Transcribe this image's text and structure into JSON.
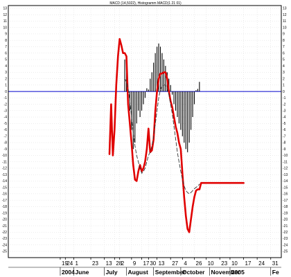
{
  "chart_data": {
    "type": "line",
    "title": "MACD (14,5022), Histogramm MACD(1 21 01)",
    "xlabel": "",
    "ylabel": "",
    "ylim": [
      -25,
      13
    ],
    "y_ticks": [
      13,
      12,
      11,
      10,
      9,
      8,
      7,
      6,
      5,
      4,
      3,
      2,
      1,
      0,
      -1,
      -2,
      -3,
      -4,
      -5,
      -6,
      -7,
      -8,
      -9,
      -10,
      -11,
      -12,
      -13,
      -14,
      -15,
      -16,
      -17,
      -18,
      -19,
      -20,
      -21,
      -22,
      -23,
      -24,
      -25
    ],
    "grid": true,
    "legend": "none",
    "x_ticks": [
      {
        "label": "19",
        "i": -29
      },
      {
        "label": "24",
        "i": -26
      },
      {
        "label": "1",
        "i": -21
      },
      {
        "label": "23",
        "i": -11
      },
      {
        "label": "13",
        "i": -3
      },
      {
        "label": "28",
        "i": 3
      },
      {
        "label": "2",
        "i": 6
      },
      {
        "label": "9",
        "i": 13
      },
      {
        "label": "17",
        "i": 19
      },
      {
        "label": "30",
        "i": 23
      },
      {
        "label": "13",
        "i": 28
      },
      {
        "label": "27",
        "i": 36
      },
      {
        "label": "4",
        "i": 43
      },
      {
        "label": "26",
        "i": 50
      },
      {
        "label": "10",
        "i": 57
      },
      {
        "label": "23",
        "i": 65
      },
      {
        "label": "10",
        "i": 71
      },
      {
        "label": "17",
        "i": 79
      },
      {
        "label": "24",
        "i": 87
      },
      {
        "label": "31",
        "i": 95
      }
    ],
    "x_months": [
      {
        "label": "2004",
        "i": -29
      },
      {
        "label": "June",
        "i": -21
      },
      {
        "label": "July",
        "i": -3
      },
      {
        "label": "August",
        "i": 10
      },
      {
        "label": "September",
        "i": 26
      },
      {
        "label": "October",
        "i": 42
      },
      {
        "label": "November",
        "i": 59
      },
      {
        "label": "2005",
        "i": 71
      },
      {
        "label": "Fe",
        "i": 95
      }
    ],
    "series": [
      {
        "color": "#e00000",
        "style": "solid",
        "x": [
          0,
          1,
          2,
          3,
          4,
          5,
          6,
          7,
          8,
          9,
          10,
          11,
          12,
          13,
          14,
          15,
          16,
          17,
          18,
          19,
          20,
          21,
          22,
          23,
          24,
          25,
          26,
          27,
          28,
          29,
          30,
          31,
          32,
          33,
          34,
          35,
          36,
          37,
          38,
          39,
          40,
          41,
          42,
          43,
          44,
          45,
          46,
          47,
          48,
          49,
          50,
          51,
          52,
          53,
          54,
          55,
          56,
          57,
          58,
          59,
          60,
          61,
          62,
          63,
          64,
          65,
          66,
          67,
          68,
          69,
          70,
          71,
          72,
          73,
          74,
          75,
          76,
          77,
          78,
          79
        ],
        "values": [
          -9.8,
          -2.0,
          -10.0,
          -6.0,
          1.0,
          5.5,
          8.2,
          7.2,
          6.0,
          6.0,
          5.5,
          -2.0,
          -5.0,
          -8.0,
          -11.5,
          -13.8,
          -14.0,
          -12.5,
          -11.5,
          -12.5,
          -12.0,
          -11.0,
          -9.0,
          -5.8,
          -9.5,
          -9.2,
          -7.5,
          -3.0,
          0.0,
          2.0,
          2.8,
          2.8,
          3.0,
          3.0,
          2.0,
          0.0,
          -1.5,
          -2.5,
          -4.0,
          -5.5,
          -6.5,
          -8.0,
          -9.0,
          -13.0,
          -16.5,
          -19.5,
          -21.5,
          -22.0,
          -20.0,
          -18.0,
          -16.5,
          -15.5,
          -15.3,
          -15.3,
          -14.3,
          -14.3,
          -14.3,
          -14.3,
          -14.3,
          -14.3,
          -14.3,
          -14.3,
          -14.3,
          -14.3,
          -14.3,
          -14.3,
          -14.3,
          -14.3,
          -14.3,
          -14.3,
          -14.3,
          -14.3,
          -14.3,
          -14.3,
          -14.3,
          -14.3,
          -14.3,
          -14.3,
          -14.3,
          -14.3
        ]
      },
      {
        "color": "#333333",
        "style": "dashed",
        "x": [
          9,
          10,
          11,
          12,
          13,
          14,
          15,
          16,
          17,
          18,
          19,
          20,
          21,
          22,
          23,
          24,
          25,
          26,
          27,
          28,
          29,
          30,
          31,
          32,
          33,
          34,
          35,
          36,
          37,
          38,
          39,
          40,
          41,
          42,
          43,
          44,
          45,
          46,
          47,
          48,
          49,
          50,
          51,
          52,
          53
        ],
        "values": [
          2.0,
          1.5,
          0.5,
          -1.5,
          -4.0,
          -6.5,
          -8.5,
          -10.0,
          -11.0,
          -12.0,
          -12.8,
          -12.5,
          -12.0,
          -11.0,
          -10.0,
          -9.5,
          -8.5,
          -7.0,
          -5.0,
          -3.0,
          -1.0,
          0.3,
          0.8,
          1.0,
          1.0,
          0.5,
          -0.5,
          -2.0,
          -3.5,
          -5.5,
          -7.5,
          -9.5,
          -11.0,
          -12.5,
          -13.8,
          -14.8,
          -15.5,
          -15.8,
          -16.0,
          -15.8,
          -15.5,
          -15.2,
          -15.0,
          -14.8,
          -14.5
        ]
      }
    ],
    "histogram": {
      "color": "#000000",
      "x": [
        9,
        10,
        11,
        12,
        13,
        14,
        15,
        16,
        17,
        18,
        19,
        20,
        21,
        22,
        23,
        24,
        25,
        26,
        27,
        28,
        29,
        30,
        31,
        32,
        33,
        34,
        35,
        36,
        37,
        38,
        39,
        40,
        41,
        42,
        43,
        44,
        45,
        46,
        47,
        48,
        49,
        50,
        51,
        52,
        53
      ],
      "values": [
        5.0,
        4.0,
        -2.0,
        -3.0,
        -6.0,
        -9.0,
        -8.0,
        -5.0,
        -3.0,
        -4.0,
        -3.0,
        -2.0,
        -1.0,
        0.5,
        0.3,
        2.0,
        3.0,
        4.5,
        6.0,
        7.0,
        7.5,
        7.0,
        6.0,
        5.0,
        4.0,
        3.0,
        2.0,
        1.0,
        -0.5,
        -2.0,
        -3.0,
        -4.0,
        -5.0,
        -6.0,
        -7.0,
        -8.0,
        -9.0,
        -9.5,
        -8.0,
        -6.0,
        -4.0,
        -2.0,
        0.2,
        0.4,
        1.5
      ]
    }
  }
}
